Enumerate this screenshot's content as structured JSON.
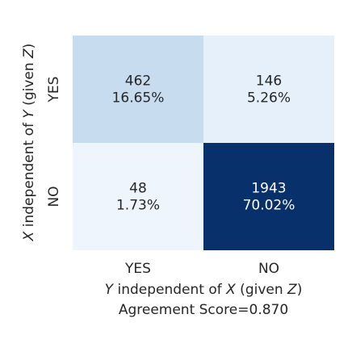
{
  "chart_data": {
    "type": "heatmap",
    "title": "",
    "xlabel": {
      "pre": "Y",
      "mid": " independent of ",
      "x": "X",
      "given": " (given ",
      "z": "Z",
      "close": ")"
    },
    "ylabel": {
      "pre": "X",
      "mid": " independent of ",
      "y": "Y",
      "given": " (given ",
      "z": "Z",
      "close": ")"
    },
    "subtitle": "Agreement Score=0.870",
    "x_categories": [
      "YES",
      "NO"
    ],
    "y_categories": [
      "YES",
      "NO"
    ],
    "cells": [
      {
        "row": 0,
        "col": 0,
        "count": 462,
        "count_label": "462",
        "percent_label": "16.65%",
        "color": "#c8dcf0",
        "text_color": "#262626"
      },
      {
        "row": 0,
        "col": 1,
        "count": 146,
        "count_label": "146",
        "percent_label": "5.26%",
        "color": "#e6f0fa",
        "text_color": "#262626"
      },
      {
        "row": 1,
        "col": 0,
        "count": 48,
        "count_label": "48",
        "percent_label": "1.73%",
        "color": "#eef5fc",
        "text_color": "#262626"
      },
      {
        "row": 1,
        "col": 1,
        "count": 1943,
        "count_label": "1943",
        "percent_label": "70.02%",
        "color": "#08306b",
        "text_color": "#ffffff"
      }
    ],
    "colormap": "Blues",
    "grid": false,
    "legend": "none"
  }
}
